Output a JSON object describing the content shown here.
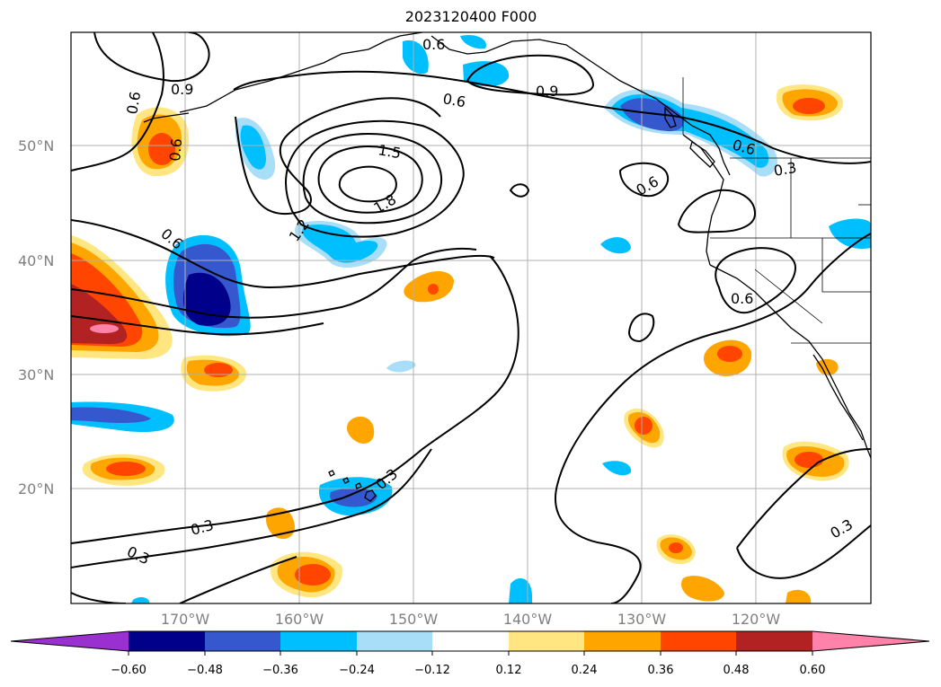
{
  "title": "2023120400 F000",
  "lat_labels": [
    "50°N",
    "40°N",
    "30°N",
    "20°N"
  ],
  "lon_labels": [
    "170°W",
    "160°W",
    "150°W",
    "140°W",
    "130°W",
    "120°W"
  ],
  "colorbar": {
    "ticks": [
      "−0.60",
      "−0.48",
      "−0.36",
      "−0.24",
      "−0.12",
      "0.12",
      "0.24",
      "0.36",
      "0.48",
      "0.60"
    ],
    "colors": [
      "#9b30d0",
      "#00008b",
      "#3658cf",
      "#00bfff",
      "#a8def8",
      "#ffffff",
      "#ffe680",
      "#ffa500",
      "#ff4500",
      "#b22222",
      "#ff82ab"
    ]
  },
  "contour_labels": [
    {
      "text": "0.6"
    },
    {
      "text": "0.9"
    },
    {
      "text": "0.6"
    },
    {
      "text": "0.9"
    },
    {
      "text": "0.6"
    },
    {
      "text": "0.6"
    },
    {
      "text": "1.5"
    },
    {
      "text": "1.8"
    },
    {
      "text": "1.2"
    },
    {
      "text": "0.6"
    },
    {
      "text": "0.6"
    },
    {
      "text": "0.6"
    },
    {
      "text": "0.3"
    },
    {
      "text": "0.6"
    },
    {
      "text": "0.3"
    },
    {
      "text": "0.3"
    },
    {
      "text": "0.3"
    },
    {
      "text": "0.3"
    }
  ]
}
